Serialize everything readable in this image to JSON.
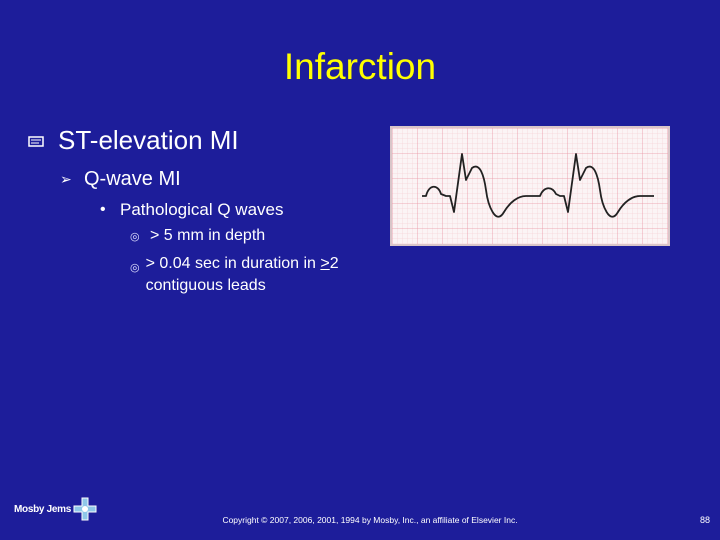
{
  "slide": {
    "title": "Infarction",
    "bullets": {
      "level1": {
        "text": "ST-elevation MI",
        "icon": "presentation-bullet-icon"
      },
      "level2": {
        "text": "Q-wave MI",
        "icon": "arrow-bullet-icon"
      },
      "level3": {
        "text": "Pathological Q waves",
        "icon": "dot-bullet-icon"
      },
      "level4": [
        {
          "text": "> 5 mm in depth",
          "icon": "circle-bullet-icon"
        },
        {
          "prefix": "> 0.04 sec in duration in ",
          "underlined": ">",
          "rest": "2 contiguous leads",
          "icon": "circle-bullet-icon"
        }
      ]
    },
    "figure": {
      "type": "ecg-strip",
      "description_icon": "ecg-waveform-icon"
    },
    "footer": "Copyright © 2007, 2006, 2001, 1994 by Mosby, Inc., an affiliate of Elsevier Inc.",
    "page_number": "88",
    "logo_text": "Mosby Jems"
  },
  "colors": {
    "background": "#1d1d9a",
    "title": "#ffff00",
    "text": "#ffffff",
    "ecg_grid": "#f0b8c0",
    "ecg_trace": "#222222"
  }
}
